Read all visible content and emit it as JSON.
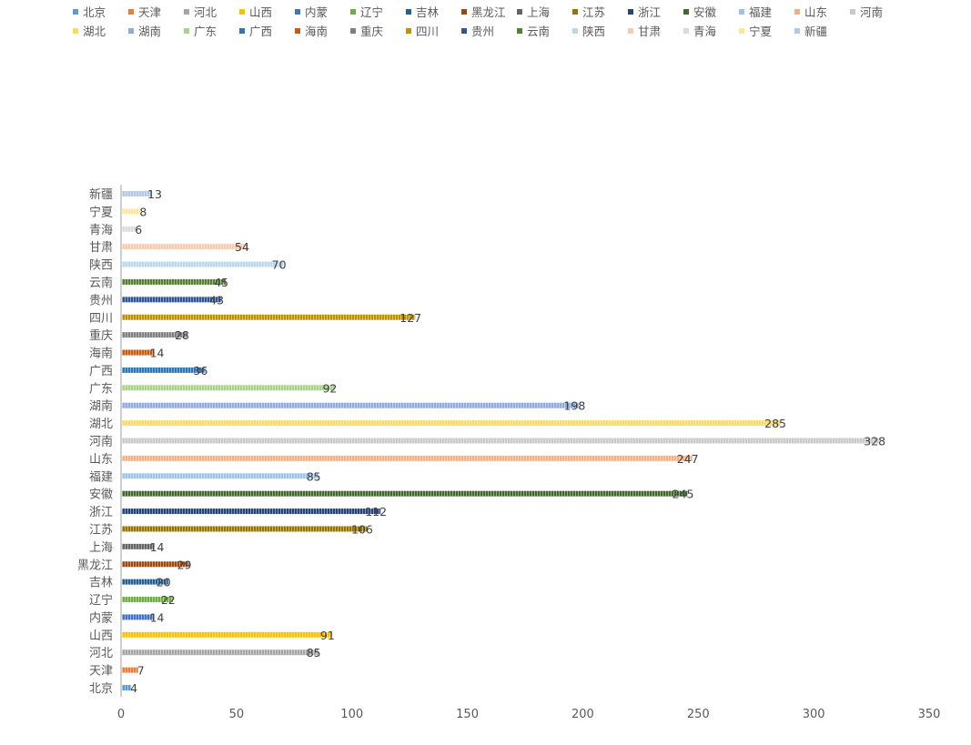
{
  "chart_data": {
    "type": "bar",
    "orientation": "horizontal",
    "categories": [
      "北京",
      "天津",
      "河北",
      "山西",
      "内蒙",
      "辽宁",
      "吉林",
      "黑龙江",
      "上海",
      "江苏",
      "浙江",
      "安徽",
      "福建",
      "山东",
      "河南",
      "湖北",
      "湖南",
      "广东",
      "广西",
      "海南",
      "重庆",
      "四川",
      "贵州",
      "云南",
      "陕西",
      "甘肃",
      "青海",
      "宁夏",
      "新疆"
    ],
    "values": [
      4,
      7,
      85,
      91,
      14,
      22,
      20,
      29,
      14,
      106,
      112,
      245,
      85,
      247,
      328,
      285,
      198,
      92,
      36,
      14,
      28,
      127,
      43,
      45,
      70,
      54,
      6,
      8,
      13
    ],
    "colors": [
      "#5b9bd5",
      "#ed7d31",
      "#a5a5a5",
      "#ffc000",
      "#4472c4",
      "#70ad47",
      "#255e91",
      "#9e480e",
      "#636363",
      "#997300",
      "#264478",
      "#43682b",
      "#9dc3e6",
      "#f4b183",
      "#c9c9c9",
      "#ffd966",
      "#8faadc",
      "#a9d18e",
      "#2e75b6",
      "#c55a11",
      "#7f7f7f",
      "#bf9000",
      "#2f5597",
      "#548235",
      "#bdd7ee",
      "#f8cbad",
      "#dbdbdb",
      "#ffe699",
      "#b4c7e7"
    ],
    "xlim": [
      0,
      350
    ],
    "xticks": [
      "0",
      "50",
      "100",
      "150",
      "200",
      "250",
      "300",
      "350"
    ],
    "grid": false,
    "legend_position": "top",
    "data_labels": true
  }
}
